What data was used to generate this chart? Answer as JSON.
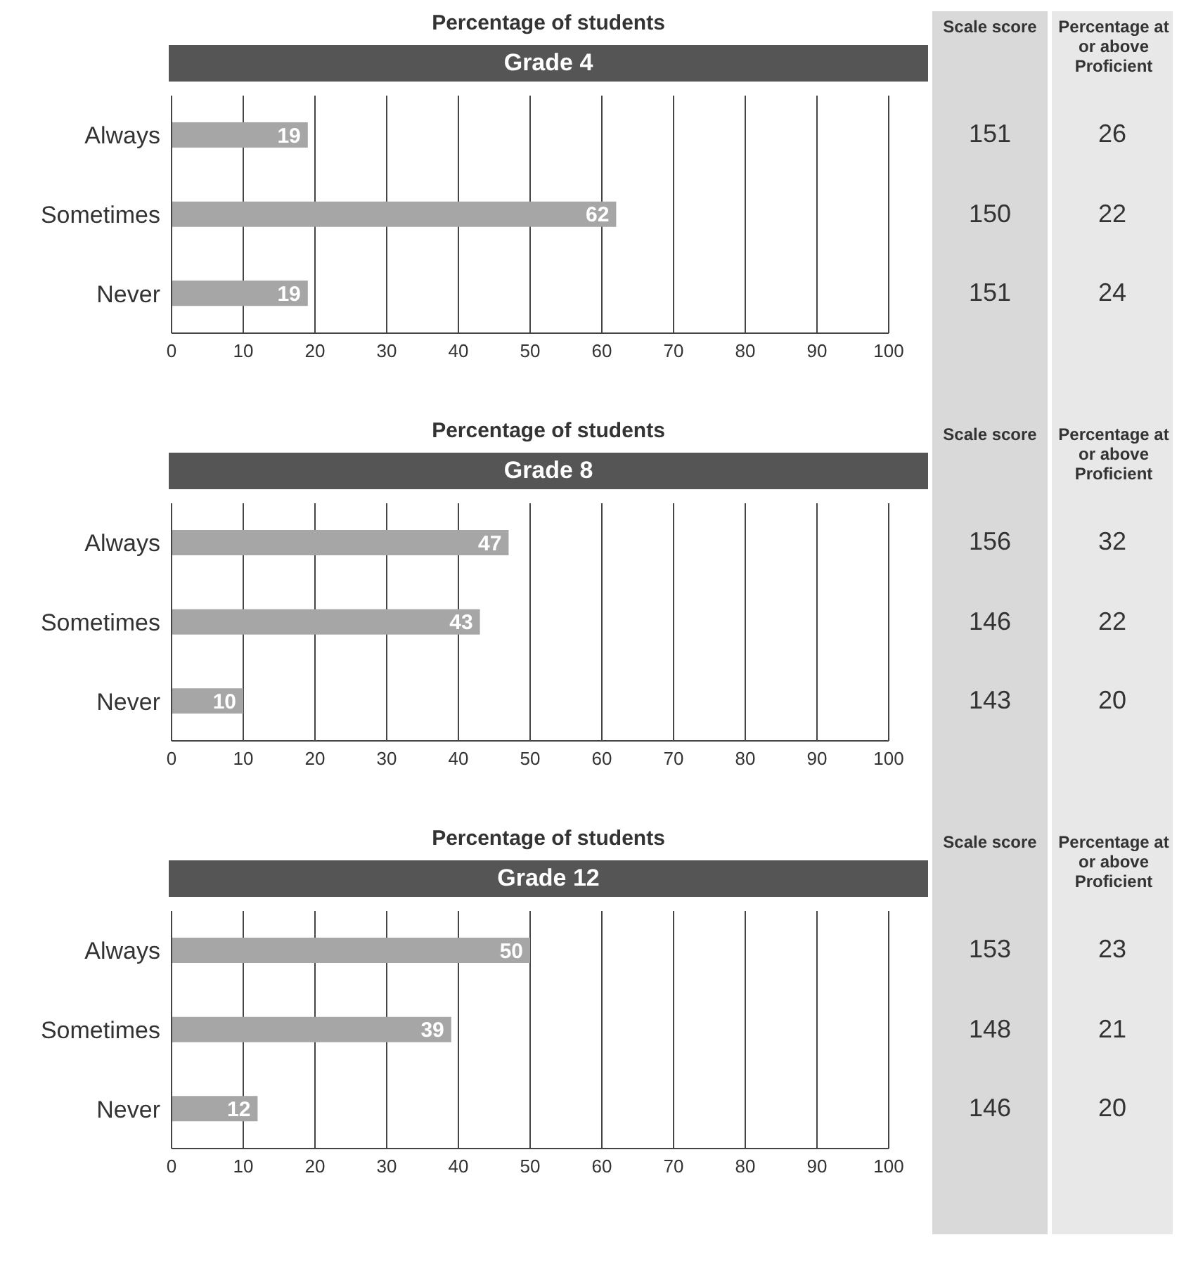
{
  "chart_data": [
    {
      "type": "bar",
      "orientation": "horizontal",
      "title": "Percentage of students",
      "subtitle": "Grade 4",
      "categories": [
        "Always",
        "Sometimes",
        "Never"
      ],
      "values": [
        19,
        62,
        19
      ],
      "color": "#a6a6a6",
      "xlim": [
        0,
        100
      ],
      "xticks": [
        0,
        10,
        20,
        30,
        40,
        50,
        60,
        70,
        80,
        90,
        100
      ],
      "grid": "x",
      "data_labels": true,
      "annotations": [
        "Scale score",
        "Percentage at or above Proficient",
        "151",
        "26",
        "150",
        "22",
        "151",
        "24"
      ]
    },
    {
      "type": "bar",
      "orientation": "horizontal",
      "title": "Percentage of students",
      "subtitle": "Grade 8",
      "categories": [
        "Always",
        "Sometimes",
        "Never"
      ],
      "values": [
        47,
        43,
        10
      ],
      "color": "#a6a6a6",
      "xlim": [
        0,
        100
      ],
      "xticks": [
        0,
        10,
        20,
        30,
        40,
        50,
        60,
        70,
        80,
        90,
        100
      ],
      "grid": "x",
      "data_labels": true,
      "annotations": [
        "Scale score",
        "Percentage at or above Proficient",
        "156",
        "32",
        "146",
        "22",
        "143",
        "20"
      ]
    },
    {
      "type": "bar",
      "orientation": "horizontal",
      "title": "Percentage of students",
      "subtitle": "Grade 12",
      "categories": [
        "Always",
        "Sometimes",
        "Never"
      ],
      "values": [
        50,
        39,
        12
      ],
      "color": "#a6a6a6",
      "xlim": [
        0,
        100
      ],
      "xticks": [
        0,
        10,
        20,
        30,
        40,
        50,
        60,
        70,
        80,
        90,
        100
      ],
      "grid": "x",
      "data_labels": true,
      "annotations": [
        "Scale score",
        "Percentage at or above Proficient",
        "153",
        "23",
        "148",
        "21",
        "146",
        "20"
      ]
    }
  ]
}
